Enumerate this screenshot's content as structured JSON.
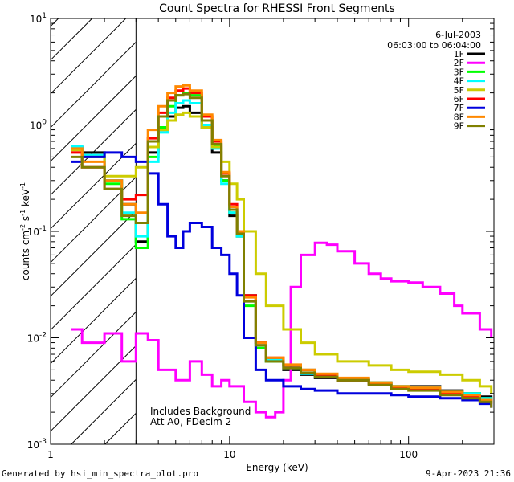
{
  "chart_data": {
    "type": "line",
    "title": "Count Spectra for RHESSI Front Segments",
    "xlabel": "Energy (keV)",
    "ylabel_parts": [
      "counts cm",
      "-2",
      " s",
      "-1",
      " keV",
      "-1"
    ],
    "x_scale": "log",
    "y_scale": "log",
    "xlim": [
      1,
      300
    ],
    "ylim": [
      0.001,
      10
    ],
    "x_ticks": [
      {
        "value": 1,
        "label": "1"
      },
      {
        "value": 10,
        "label": "10"
      },
      {
        "value": 100,
        "label": "100"
      }
    ],
    "y_ticks": [
      {
        "value": 0.001,
        "base": "10",
        "exp": "-3"
      },
      {
        "value": 0.01,
        "base": "10",
        "exp": "-2"
      },
      {
        "value": 0.1,
        "base": "10",
        "exp": "-1"
      },
      {
        "value": 1,
        "base": "10",
        "exp": "0"
      },
      {
        "value": 10,
        "base": "10",
        "exp": "1"
      }
    ],
    "shaded_region": [
      1,
      3
    ],
    "date": "6-Jul-2003",
    "time_range": "06:03:00 to 06:04:00",
    "annotations": [
      "Includes Background",
      "Att A0, FDecim 2"
    ],
    "series": [
      {
        "name": "1F",
        "color": "#000000",
        "x": [
          1.3,
          1.5,
          2.0,
          2.5,
          3.0,
          3.5,
          4.0,
          4.5,
          5.0,
          5.5,
          6.0,
          7.0,
          8.0,
          9.0,
          10.0,
          11.0,
          12.0,
          14.0,
          16.0,
          20.0,
          25.0,
          30.0,
          40.0,
          60.0,
          80.0,
          100.0,
          150.0,
          200.0,
          250.0,
          290.0
        ],
        "y": [
          0.62,
          0.55,
          0.3,
          0.18,
          0.08,
          0.55,
          0.9,
          1.2,
          1.45,
          1.5,
          1.3,
          0.95,
          0.55,
          0.3,
          0.14,
          0.09,
          0.025,
          0.009,
          0.006,
          0.005,
          0.0045,
          0.0042,
          0.004,
          0.0038,
          0.0035,
          0.0035,
          0.0032,
          0.003,
          0.0028,
          0.0025
        ]
      },
      {
        "name": "2F",
        "color": "#ff00ff",
        "x": [
          1.3,
          1.5,
          2.0,
          2.5,
          3.0,
          3.5,
          4.0,
          5.0,
          6.0,
          7.0,
          8.0,
          9.0,
          10.0,
          12.0,
          14.0,
          16.0,
          18.0,
          20.0,
          22.0,
          25.0,
          30.0,
          35.0,
          40.0,
          50.0,
          60.0,
          70.0,
          80.0,
          100.0,
          120.0,
          150.0,
          180.0,
          200.0,
          250.0,
          290.0
        ],
        "y": [
          0.012,
          0.009,
          0.011,
          0.006,
          0.011,
          0.0095,
          0.005,
          0.004,
          0.006,
          0.0045,
          0.0035,
          0.004,
          0.0035,
          0.0025,
          0.002,
          0.0018,
          0.002,
          0.004,
          0.03,
          0.06,
          0.078,
          0.075,
          0.065,
          0.05,
          0.04,
          0.036,
          0.034,
          0.033,
          0.03,
          0.026,
          0.02,
          0.017,
          0.012,
          0.01
        ]
      },
      {
        "name": "3F",
        "color": "#00ff00",
        "x": [
          1.3,
          1.5,
          2.0,
          2.5,
          3.0,
          3.5,
          4.0,
          4.5,
          5.0,
          5.5,
          6.0,
          7.0,
          8.0,
          9.0,
          10.0,
          11.0,
          12.0,
          14.0,
          16.0,
          20.0,
          25.0,
          30.0,
          40.0,
          60.0,
          80.0,
          100.0,
          150.0,
          200.0,
          250.0,
          290.0
        ],
        "y": [
          0.6,
          0.5,
          0.28,
          0.13,
          0.07,
          0.5,
          0.95,
          1.5,
          1.9,
          2.0,
          1.9,
          1.1,
          0.65,
          0.3,
          0.15,
          0.09,
          0.02,
          0.008,
          0.006,
          0.0055,
          0.005,
          0.0045,
          0.004,
          0.0038,
          0.0035,
          0.0034,
          0.0031,
          0.003,
          0.0027,
          0.0025
        ]
      },
      {
        "name": "4F",
        "color": "#00ffff",
        "x": [
          1.3,
          1.5,
          2.0,
          2.5,
          3.0,
          3.5,
          4.0,
          4.5,
          5.0,
          5.5,
          6.0,
          7.0,
          8.0,
          9.0,
          10.0,
          11.0,
          12.0,
          14.0,
          16.0,
          20.0,
          25.0,
          30.0,
          40.0,
          60.0,
          80.0,
          100.0,
          150.0,
          200.0,
          250.0,
          290.0
        ],
        "y": [
          0.63,
          0.52,
          0.3,
          0.15,
          0.09,
          0.45,
          0.85,
          1.3,
          1.6,
          1.7,
          1.6,
          1.0,
          0.6,
          0.28,
          0.15,
          0.09,
          0.022,
          0.0085,
          0.0062,
          0.0052,
          0.0046,
          0.0043,
          0.0041,
          0.0037,
          0.0035,
          0.0034,
          0.0031,
          0.003,
          0.0027,
          0.0024
        ]
      },
      {
        "name": "5F",
        "color": "#cccc00",
        "x": [
          1.3,
          1.5,
          2.0,
          2.5,
          3.0,
          3.5,
          4.0,
          4.5,
          5.0,
          5.5,
          6.0,
          7.0,
          8.0,
          9.0,
          10.0,
          11.0,
          12.0,
          14.0,
          16.0,
          20.0,
          25.0,
          30.0,
          40.0,
          60.0,
          80.0,
          100.0,
          150.0,
          200.0,
          250.0,
          290.0
        ],
        "y": [
          0.58,
          0.5,
          0.33,
          0.33,
          0.4,
          0.62,
          0.9,
          1.1,
          1.25,
          1.3,
          1.2,
          0.95,
          0.62,
          0.45,
          0.28,
          0.2,
          0.1,
          0.04,
          0.02,
          0.012,
          0.009,
          0.007,
          0.006,
          0.0055,
          0.005,
          0.0048,
          0.0045,
          0.004,
          0.0035,
          0.003
        ]
      },
      {
        "name": "6F",
        "color": "#ff0000",
        "x": [
          1.3,
          1.5,
          2.0,
          2.5,
          3.0,
          3.5,
          4.0,
          4.5,
          5.0,
          5.5,
          6.0,
          7.0,
          8.0,
          9.0,
          10.0,
          11.0,
          12.0,
          14.0,
          16.0,
          20.0,
          25.0,
          30.0,
          40.0,
          60.0,
          80.0,
          100.0,
          150.0,
          200.0,
          250.0,
          290.0
        ],
        "y": [
          0.55,
          0.4,
          0.25,
          0.2,
          0.22,
          0.75,
          1.3,
          1.8,
          2.1,
          2.2,
          2.0,
          1.2,
          0.7,
          0.35,
          0.18,
          0.1,
          0.025,
          0.009,
          0.0065,
          0.0055,
          0.005,
          0.0045,
          0.004,
          0.0037,
          0.0034,
          0.0033,
          0.003,
          0.0028,
          0.0026,
          0.0024
        ]
      },
      {
        "name": "7F",
        "color": "#0000dd",
        "x": [
          1.3,
          1.5,
          2.0,
          2.5,
          3.0,
          3.5,
          4.0,
          4.5,
          5.0,
          5.5,
          6.0,
          7.0,
          8.0,
          9.0,
          10.0,
          11.0,
          12.0,
          14.0,
          16.0,
          20.0,
          25.0,
          30.0,
          40.0,
          60.0,
          80.0,
          100.0,
          150.0,
          200.0,
          250.0,
          290.0
        ],
        "y": [
          0.45,
          0.5,
          0.55,
          0.5,
          0.45,
          0.35,
          0.18,
          0.09,
          0.07,
          0.1,
          0.12,
          0.11,
          0.07,
          0.06,
          0.04,
          0.025,
          0.01,
          0.005,
          0.004,
          0.0035,
          0.0033,
          0.0032,
          0.003,
          0.003,
          0.0029,
          0.0028,
          0.0027,
          0.0026,
          0.0024,
          0.0022
        ]
      },
      {
        "name": "8F",
        "color": "#ff8800",
        "x": [
          1.3,
          1.5,
          2.0,
          2.5,
          3.0,
          3.5,
          4.0,
          4.5,
          5.0,
          5.5,
          6.0,
          7.0,
          8.0,
          9.0,
          10.0,
          11.0,
          12.0,
          14.0,
          16.0,
          20.0,
          25.0,
          30.0,
          40.0,
          60.0,
          80.0,
          100.0,
          150.0,
          200.0,
          250.0,
          290.0
        ],
        "y": [
          0.6,
          0.45,
          0.3,
          0.18,
          0.15,
          0.9,
          1.5,
          2.0,
          2.3,
          2.35,
          2.1,
          1.25,
          0.72,
          0.36,
          0.17,
          0.1,
          0.024,
          0.009,
          0.0065,
          0.0056,
          0.005,
          0.0046,
          0.0042,
          0.0038,
          0.0035,
          0.0034,
          0.0031,
          0.0029,
          0.0026,
          0.0024
        ]
      },
      {
        "name": "9F",
        "color": "#808000",
        "x": [
          1.3,
          1.5,
          2.0,
          2.5,
          3.0,
          3.5,
          4.0,
          4.5,
          5.0,
          5.5,
          6.0,
          7.0,
          8.0,
          9.0,
          10.0,
          11.0,
          12.0,
          14.0,
          16.0,
          20.0,
          25.0,
          30.0,
          40.0,
          60.0,
          80.0,
          100.0,
          150.0,
          200.0,
          250.0,
          290.0
        ],
        "y": [
          0.5,
          0.4,
          0.25,
          0.14,
          0.12,
          0.7,
          1.2,
          1.7,
          1.9,
          1.95,
          1.8,
          1.1,
          0.66,
          0.33,
          0.16,
          0.095,
          0.022,
          0.0085,
          0.006,
          0.0052,
          0.0047,
          0.0043,
          0.004,
          0.0036,
          0.0033,
          0.0032,
          0.0029,
          0.0027,
          0.0025,
          0.0022
        ]
      }
    ]
  },
  "footer": {
    "generated_by": "Generated by hsi_min_spectra_plot.pro",
    "timestamp": "9-Apr-2023 21:36"
  }
}
